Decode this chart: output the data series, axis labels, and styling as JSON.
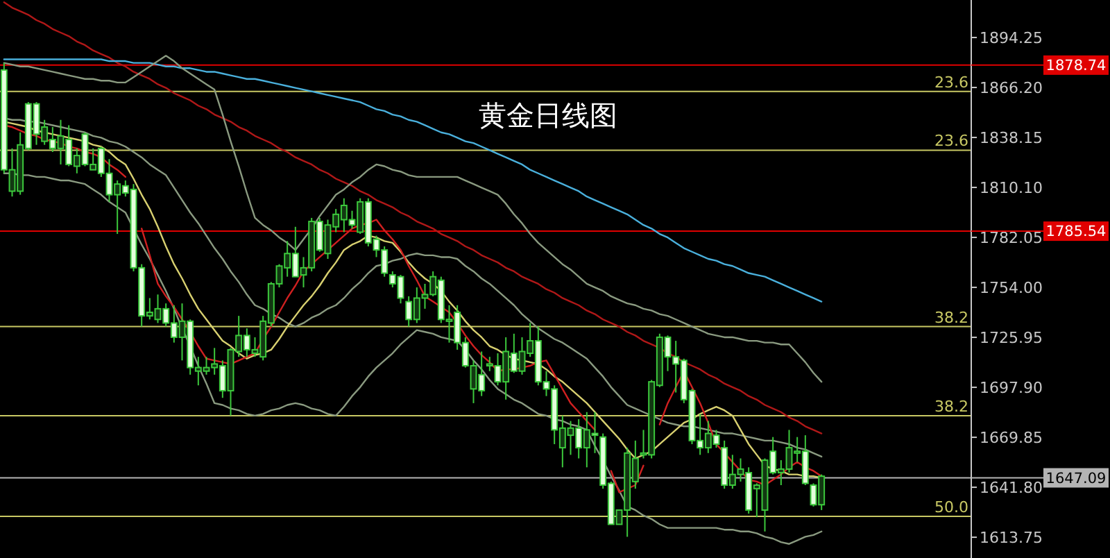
{
  "chart_data": {
    "type": "candlestick",
    "title": "黄金日线图",
    "categories": [
      null,
      null,
      null,
      null,
      null,
      null,
      null,
      null,
      null,
      null,
      null,
      null,
      null,
      null,
      null,
      null,
      null,
      null,
      null,
      null,
      null,
      null,
      null,
      null,
      null,
      null,
      null,
      null,
      null,
      null,
      null,
      null,
      null,
      null,
      null,
      null,
      null,
      null,
      null,
      null,
      null,
      null,
      null,
      null,
      null,
      null,
      null,
      null,
      null,
      null,
      null,
      null,
      null,
      null,
      null,
      null,
      null,
      null,
      null,
      null,
      null,
      null,
      null,
      null,
      null,
      null,
      null,
      null,
      null,
      null,
      null,
      null,
      null,
      null,
      null,
      null,
      null,
      null,
      null,
      null,
      null,
      null,
      null,
      null,
      null,
      null,
      null,
      null,
      null,
      null,
      null,
      null,
      null,
      null,
      null,
      null,
      null,
      null,
      null,
      null,
      null,
      null
    ],
    "ohlc": [
      [
        1876,
        1880,
        1818,
        1820
      ],
      [
        1808,
        1832,
        1805,
        1820
      ],
      [
        1808,
        1841,
        1806,
        1834
      ],
      [
        1857,
        1858,
        1831,
        1832
      ],
      [
        1857,
        1858,
        1834,
        1840
      ],
      [
        1836,
        1848,
        1834,
        1844
      ],
      [
        1837,
        1844,
        1830,
        1832
      ],
      [
        1832,
        1848,
        1823,
        1839
      ],
      [
        1837,
        1845,
        1822,
        1823
      ],
      [
        1822,
        1832,
        1818,
        1828
      ],
      [
        1840,
        1841,
        1822,
        1823
      ],
      [
        1820,
        1832,
        1820,
        1823
      ],
      [
        1832,
        1833,
        1816,
        1818
      ],
      [
        1818,
        1826,
        1802,
        1806
      ],
      [
        1806,
        1814,
        1784,
        1812
      ],
      [
        1811,
        1814,
        1805,
        1807
      ],
      [
        1809,
        1812,
        1763,
        1765
      ],
      [
        1765,
        1767,
        1732,
        1738
      ],
      [
        1738,
        1748,
        1736,
        1740
      ],
      [
        1736,
        1750,
        1734,
        1742
      ],
      [
        1742,
        1745,
        1732,
        1734
      ],
      [
        1734,
        1744,
        1723,
        1726
      ],
      [
        1726,
        1745,
        1713,
        1735
      ],
      [
        1735,
        1736,
        1705,
        1709
      ],
      [
        1707,
        1715,
        1699,
        1709
      ],
      [
        1707,
        1715,
        1705,
        1709
      ],
      [
        1709,
        1720,
        1705,
        1711
      ],
      [
        1710,
        1713,
        1692,
        1696
      ],
      [
        1696,
        1720,
        1682,
        1719
      ],
      [
        1718,
        1738,
        1715,
        1727
      ],
      [
        1727,
        1731,
        1715,
        1719
      ],
      [
        1717,
        1726,
        1715,
        1719
      ],
      [
        1715,
        1738,
        1713,
        1735
      ],
      [
        1734,
        1757,
        1732,
        1756
      ],
      [
        1756,
        1767,
        1754,
        1766
      ],
      [
        1765,
        1780,
        1760,
        1773
      ],
      [
        1773,
        1788,
        1760,
        1760
      ],
      [
        1761,
        1771,
        1754,
        1765
      ],
      [
        1765,
        1793,
        1763,
        1791
      ],
      [
        1791,
        1793,
        1774,
        1775
      ],
      [
        1773,
        1792,
        1770,
        1789
      ],
      [
        1788,
        1798,
        1785,
        1795
      ],
      [
        1792,
        1804,
        1785,
        1800
      ],
      [
        1792,
        1797,
        1787,
        1789
      ],
      [
        1785,
        1804,
        1784,
        1802
      ],
      [
        1802,
        1804,
        1777,
        1779
      ],
      [
        1781,
        1783,
        1771,
        1775
      ],
      [
        1775,
        1777,
        1760,
        1762
      ],
      [
        1761,
        1763,
        1754,
        1756
      ],
      [
        1760,
        1761,
        1745,
        1748
      ],
      [
        1746,
        1749,
        1732,
        1736
      ],
      [
        1736,
        1754,
        1734,
        1748
      ],
      [
        1748,
        1756,
        1742,
        1750
      ],
      [
        1750,
        1763,
        1749,
        1760
      ],
      [
        1758,
        1760,
        1734,
        1736
      ],
      [
        1735,
        1744,
        1723,
        1736
      ],
      [
        1740,
        1744,
        1719,
        1723
      ],
      [
        1723,
        1726,
        1709,
        1710
      ],
      [
        1697,
        1713,
        1689,
        1710
      ],
      [
        1705,
        1718,
        1693,
        1696
      ],
      [
        1710,
        1715,
        1707,
        1711
      ],
      [
        1710,
        1717,
        1699,
        1701
      ],
      [
        1701,
        1726,
        1691,
        1718
      ],
      [
        1717,
        1728,
        1706,
        1707
      ],
      [
        1707,
        1726,
        1705,
        1718
      ],
      [
        1717,
        1734,
        1715,
        1724
      ],
      [
        1724,
        1732,
        1699,
        1701
      ],
      [
        1701,
        1707,
        1693,
        1697
      ],
      [
        1697,
        1699,
        1666,
        1674
      ],
      [
        1664,
        1682,
        1653,
        1675
      ],
      [
        1671,
        1679,
        1660,
        1675
      ],
      [
        1675,
        1680,
        1658,
        1664
      ],
      [
        1664,
        1684,
        1653,
        1674
      ],
      [
        1672,
        1684,
        1661,
        1671
      ],
      [
        1670,
        1672,
        1641,
        1643
      ],
      [
        1644,
        1645,
        1621,
        1621
      ],
      [
        1621,
        1629,
        1621,
        1629
      ],
      [
        1629,
        1664,
        1614,
        1661
      ],
      [
        1645,
        1668,
        1641,
        1658
      ],
      [
        1660,
        1674,
        1658,
        1661
      ],
      [
        1660,
        1702,
        1658,
        1701
      ],
      [
        1699,
        1728,
        1698,
        1726
      ],
      [
        1726,
        1727,
        1707,
        1715
      ],
      [
        1715,
        1724,
        1695,
        1711
      ],
      [
        1713,
        1714,
        1689,
        1691
      ],
      [
        1696,
        1697,
        1666,
        1668
      ],
      [
        1668,
        1683,
        1660,
        1664
      ],
      [
        1664,
        1679,
        1661,
        1672
      ],
      [
        1671,
        1674,
        1664,
        1666
      ],
      [
        1664,
        1668,
        1641,
        1643
      ],
      [
        1643,
        1660,
        1641,
        1649
      ],
      [
        1649,
        1658,
        1645,
        1652
      ],
      [
        1650,
        1653,
        1627,
        1629
      ],
      [
        1641,
        1644,
        1625,
        1643
      ],
      [
        1629,
        1658,
        1617,
        1657
      ],
      [
        1662,
        1670,
        1649,
        1650
      ],
      [
        1650,
        1657,
        1643,
        1652
      ],
      [
        1652,
        1674,
        1650,
        1664
      ],
      [
        1661,
        1670,
        1656,
        1662
      ],
      [
        1662,
        1671,
        1643,
        1644
      ],
      [
        1643,
        1644,
        1631,
        1632
      ],
      [
        1632,
        1649,
        1629,
        1648
      ]
    ],
    "ylim": [
      1602.1,
      1915.3
    ],
    "yticks": [
      1894.25,
      {
        "value": 1866.2,
        "label": "1866.20"
      },
      1838.15,
      {
        "value": 1810.1,
        "label": "1810.10"
      },
      1782.05,
      {
        "value": 1754,
        "label": "1754.00"
      },
      1725.95,
      {
        "value": 1697.9,
        "label": "1697.90"
      },
      1669.85,
      {
        "value": 1641.8,
        "label": "1641.80"
      },
      1613.75
    ],
    "tick_labels": "y",
    "ref_lines": [
      {
        "axis": "y",
        "value": 1878.74,
        "label": "1878.74",
        "color": "#e00000"
      },
      {
        "axis": "y",
        "value": 1864,
        "color": "#c8c864"
      },
      {
        "axis": "y",
        "value": 1831,
        "color": "#c8c864"
      },
      {
        "axis": "y",
        "value": 1785.54,
        "label": "1785.54",
        "color": "#e00000"
      },
      {
        "axis": "y",
        "value": 1732,
        "color": "#c8c864"
      },
      {
        "axis": "y",
        "value": 1682,
        "color": "#c8c864"
      },
      {
        "axis": "y",
        "value": 1625.5,
        "color": "#c8c864"
      },
      {
        "axis": "y",
        "value": 1647.09,
        "label": "1647.09",
        "color": "#b4b4b4"
      }
    ],
    "annotations": [
      {
        "text": "23.6",
        "y": 1864
      },
      {
        "text": "23.6",
        "y": 1831
      },
      {
        "text": "38.2",
        "y": 1732
      },
      {
        "text": "38.2",
        "y": 1682
      },
      {
        "text": "50.0",
        "y": 1625.5
      }
    ],
    "series": [
      {
        "type": "line",
        "color": "#b01818",
        "values": [
          1914,
          1911,
          1909,
          1907,
          1904,
          1902,
          1899,
          1897,
          1895,
          1892,
          1890,
          1887,
          1885,
          1883,
          1880,
          1878,
          1875,
          1873,
          1871,
          1868,
          1866,
          1863,
          1861,
          1859,
          1856,
          1854,
          1851,
          1849,
          1847,
          1844,
          1842,
          1839,
          1837,
          1835,
          1832,
          1830,
          1827,
          1825,
          1823,
          1820,
          1818,
          1815,
          1813,
          1811,
          1808,
          1806,
          1803,
          1801,
          1799,
          1796,
          1794,
          1791,
          1789,
          1787,
          1784,
          1782,
          1780,
          1777,
          1775,
          1772,
          1770,
          1768,
          1765,
          1763,
          1760,
          1758,
          1756,
          1753,
          1751,
          1748,
          1746,
          1744,
          1741,
          1739,
          1736,
          1734,
          1732,
          1729,
          1727,
          1724,
          1722,
          1720,
          1717,
          1715,
          1712,
          1710,
          1708,
          1705,
          1703,
          1700,
          1698,
          1696,
          1693,
          1691,
          1688,
          1686,
          1684,
          1681,
          1679,
          1676,
          1674,
          1672
        ]
      },
      {
        "type": "line",
        "color": "#4ab0dc",
        "values": [
          1882,
          1882,
          1882,
          1882,
          1882,
          1882,
          1882,
          1882,
          1882,
          1882,
          1882,
          1882,
          1882,
          1881,
          1881,
          1881,
          1880,
          1880,
          1880,
          1879,
          1878,
          1878,
          1877,
          1877,
          1876,
          1875,
          1875,
          1874,
          1873,
          1872,
          1871,
          1871,
          1870,
          1869,
          1868,
          1867,
          1866,
          1865,
          1864,
          1863,
          1862,
          1861,
          1860,
          1859,
          1858,
          1856,
          1854,
          1853,
          1851,
          1850,
          1848,
          1847,
          1845,
          1843,
          1841,
          1840,
          1838,
          1836,
          1835,
          1833,
          1831,
          1829,
          1827,
          1825,
          1823,
          1820,
          1818,
          1816,
          1814,
          1812,
          1810,
          1808,
          1805,
          1803,
          1801,
          1799,
          1797,
          1795,
          1792,
          1789,
          1787,
          1784,
          1782,
          1779,
          1776,
          1774,
          1772,
          1770,
          1769,
          1767,
          1766,
          1764,
          1762,
          1761,
          1760,
          1758,
          1756,
          1754,
          1752,
          1750,
          1748,
          1746
        ]
      },
      {
        "type": "line",
        "color": "#8a9a80",
        "values": [
          1880,
          1879,
          1878,
          1878,
          1877,
          1876,
          1875,
          1874,
          1873,
          1872,
          1871,
          1871,
          1870,
          1870,
          1869,
          1869,
          1872,
          1875,
          1878,
          1881,
          1884,
          1881,
          1877,
          1874,
          1871,
          1868,
          1865,
          1851,
          1836,
          1822,
          1807,
          1793,
          1789,
          1786,
          1782,
          1779,
          1775,
          1781,
          1787,
          1794,
          1800,
          1806,
          1809,
          1813,
          1816,
          1820,
          1823,
          1822,
          1820,
          1819,
          1817,
          1816,
          1816,
          1816,
          1816,
          1816,
          1816,
          1814,
          1812,
          1810,
          1808,
          1806,
          1801,
          1795,
          1790,
          1784,
          1779,
          1775,
          1771,
          1767,
          1764,
          1760,
          1756,
          1754,
          1752,
          1749,
          1747,
          1745,
          1744,
          1742,
          1741,
          1739,
          1738,
          1736,
          1734,
          1732,
          1730,
          1728,
          1727,
          1726,
          1726,
          1725,
          1724,
          1724,
          1723,
          1723,
          1722,
          1722,
          1717,
          1712,
          1706,
          1701
        ]
      },
      {
        "type": "line",
        "color": "#8a9a80",
        "values": [
          1849,
          1848,
          1848,
          1847,
          1847,
          1846,
          1845,
          1844,
          1843,
          1842,
          1841,
          1839,
          1838,
          1836,
          1835,
          1833,
          1830,
          1827,
          1823,
          1820,
          1817,
          1810,
          1803,
          1796,
          1790,
          1783,
          1776,
          1770,
          1763,
          1757,
          1750,
          1744,
          1742,
          1739,
          1737,
          1734,
          1732,
          1734,
          1737,
          1739,
          1742,
          1744,
          1748,
          1753,
          1757,
          1762,
          1766,
          1767,
          1769,
          1770,
          1772,
          1773,
          1772,
          1772,
          1771,
          1771,
          1770,
          1766,
          1763,
          1759,
          1756,
          1752,
          1748,
          1744,
          1739,
          1735,
          1731,
          1728,
          1725,
          1723,
          1720,
          1717,
          1714,
          1709,
          1704,
          1698,
          1693,
          1688,
          1686,
          1684,
          1682,
          1680,
          1678,
          1677,
          1676,
          1676,
          1675,
          1674,
          1673,
          1672,
          1672,
          1671,
          1670,
          1669,
          1668,
          1668,
          1667,
          1666,
          1664,
          1663,
          1661,
          1659
        ]
      },
      {
        "type": "line",
        "color": "#8a9a80",
        "values": [
          1818,
          1818,
          1817,
          1817,
          1816,
          1816,
          1815,
          1814,
          1814,
          1813,
          1812,
          1809,
          1806,
          1802,
          1799,
          1796,
          1787,
          1778,
          1770,
          1761,
          1752,
          1742,
          1731,
          1721,
          1710,
          1700,
          1689,
          1688,
          1686,
          1685,
          1683,
          1682,
          1683,
          1685,
          1686,
          1688,
          1689,
          1688,
          1686,
          1685,
          1683,
          1682,
          1687,
          1693,
          1698,
          1704,
          1709,
          1713,
          1717,
          1722,
          1726,
          1730,
          1729,
          1728,
          1726,
          1725,
          1724,
          1719,
          1713,
          1708,
          1702,
          1697,
          1694,
          1691,
          1689,
          1686,
          1683,
          1682,
          1680,
          1679,
          1677,
          1676,
          1674,
          1665,
          1657,
          1648,
          1640,
          1631,
          1629,
          1626,
          1624,
          1621,
          1619,
          1619,
          1619,
          1619,
          1619,
          1619,
          1619,
          1618,
          1618,
          1617,
          1617,
          1616,
          1614,
          1613,
          1611,
          1610,
          1612,
          1614,
          1615,
          1617
        ]
      },
      {
        "type": "line",
        "color": "#d8d070",
        "values": [
          1847,
          1846,
          1845,
          1844,
          1842,
          1841,
          1840,
          1839,
          1838,
          1837,
          1836,
          1834,
          1833,
          1830,
          1826,
          1823,
          1815,
          1806,
          1798,
          1788,
          1777,
          1767,
          1759,
          1750,
          1742,
          1736,
          1730,
          1724,
          1721,
          1717,
          1714,
          1716,
          1717,
          1719,
          1725,
          1732,
          1738,
          1744,
          1749,
          1755,
          1762,
          1768,
          1775,
          1778,
          1780,
          1783,
          1782,
          1780,
          1779,
          1774,
          1768,
          1763,
          1759,
          1756,
          1752,
          1746,
          1741,
          1735,
          1730,
          1726,
          1721,
          1719,
          1716,
          1714,
          1713,
          1712,
          1711,
          1708,
          1704,
          1701,
          1697,
          1693,
          1689,
          1684,
          1679,
          1674,
          1669,
          1663,
          1658,
          1660,
          1662,
          1666,
          1670,
          1674,
          1678,
          1680,
          1683,
          1685,
          1687,
          1685,
          1682,
          1674,
          1666,
          1660,
          1654,
          1652,
          1651,
          1649,
          1649,
          1648,
          1648,
          1647
        ]
      },
      {
        "type": "line",
        "color": "#d02020",
        "values": [
          1845,
          1844,
          1842,
          1840,
          1839,
          1837,
          1836,
          1835,
          1833,
          1832,
          1830,
          1829,
          1827,
          1823,
          1820,
          1816,
          null,
          1787,
          1772,
          1756,
          1749,
          1743,
          1736,
          1729,
          1721,
          1714,
          1713,
          1712,
          1711,
          1713,
          1715,
          1717,
          1725,
          1732,
          1740,
          1748,
          1755,
          1763,
          1767,
          1771,
          1775,
          1779,
          1783,
          1787,
          1789,
          1790,
          1792,
          1786,
          1781,
          1775,
          1766,
          1758,
          1749,
          1746,
          1743,
          1740,
          1734,
          1727,
          1721,
          1716,
          1712,
          1707,
          1708,
          1708,
          1709,
          1710,
          1712,
          1713,
          1705,
          1697,
          1689,
          1684,
          1679,
          1674,
          null,
          1651,
          1639,
          1641,
          1643,
          1654,
          null,
          1677,
          1689,
          1698,
          1707,
          1698,
          1689,
          1678,
          1666,
          1661,
          1656,
          1651,
          1646,
          1645,
          1643,
          1646,
          1649,
          1653,
          1656,
          1653,
          1651,
          1648
        ]
      }
    ]
  }
}
